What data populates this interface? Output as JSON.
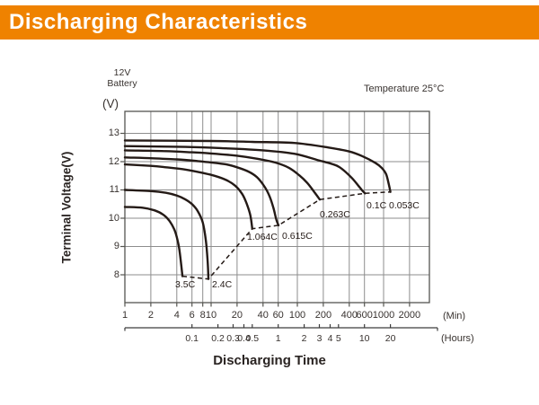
{
  "header": {
    "title": "Discharging Characteristics"
  },
  "annotations": {
    "battery_line1": "12V",
    "battery_line2": "Battery",
    "temperature": "Temperature 25°C",
    "v_unit": "(V)",
    "min_unit": "(Min)",
    "hours_unit": "(Hours)"
  },
  "colors": {
    "banner_orange": "#EF8200",
    "curve": "#241A16",
    "grid": "#8D8D8D",
    "frame": "#555550",
    "text": "#38322F"
  },
  "chart_data": {
    "type": "line",
    "title": "Discharging Characteristics",
    "xlabel": "Discharging Time",
    "ylabel": "Terminal Voltage(V)",
    "x_scale": "log",
    "x_unit": "minutes",
    "x_ticks_minutes": [
      1,
      2,
      4,
      6,
      8,
      10,
      20,
      40,
      60,
      100,
      200,
      400,
      600,
      1000,
      2000
    ],
    "x_ticks_hours": [
      "0.1",
      "0.2",
      "0.3",
      "0.4",
      "0.5",
      "1",
      "2",
      "3",
      "4",
      "5",
      "10",
      "20"
    ],
    "y_ticks": [
      8,
      9,
      10,
      11,
      12,
      13
    ],
    "ylim": [
      7.0,
      13.7
    ],
    "grid": true,
    "legend_position": "inline-labels",
    "temperature": "Temperature 25°C",
    "series": [
      {
        "name": "3.5C",
        "points": [
          [
            1,
            10.4
          ],
          [
            1.6,
            10.37
          ],
          [
            2.2,
            10.28
          ],
          [
            2.8,
            10.12
          ],
          [
            3.3,
            9.9
          ],
          [
            3.8,
            9.55
          ],
          [
            4.2,
            9.05
          ],
          [
            4.45,
            8.5
          ],
          [
            4.6,
            8.1
          ],
          [
            4.65,
            7.95
          ]
        ]
      },
      {
        "name": "2.4C",
        "points": [
          [
            1,
            11.0
          ],
          [
            2,
            10.96
          ],
          [
            3,
            10.9
          ],
          [
            4,
            10.8
          ],
          [
            5,
            10.67
          ],
          [
            6,
            10.5
          ],
          [
            7,
            10.25
          ],
          [
            8,
            9.85
          ],
          [
            8.7,
            9.2
          ],
          [
            9.1,
            8.5
          ],
          [
            9.3,
            7.85
          ]
        ]
      },
      {
        "name": "1.064C",
        "points": [
          [
            1,
            11.9
          ],
          [
            2,
            11.85
          ],
          [
            3,
            11.8
          ],
          [
            5,
            11.72
          ],
          [
            8,
            11.6
          ],
          [
            11,
            11.5
          ],
          [
            15,
            11.35
          ],
          [
            19,
            11.15
          ],
          [
            23,
            10.85
          ],
          [
            26,
            10.5
          ],
          [
            28.5,
            10.1
          ],
          [
            30,
            9.63
          ]
        ]
      },
      {
        "name": "0.615C",
        "points": [
          [
            1,
            12.15
          ],
          [
            2,
            12.12
          ],
          [
            4,
            12.08
          ],
          [
            7,
            12.02
          ],
          [
            10,
            11.97
          ],
          [
            15,
            11.9
          ],
          [
            20,
            11.8
          ],
          [
            27,
            11.65
          ],
          [
            34,
            11.45
          ],
          [
            42,
            11.1
          ],
          [
            48,
            10.75
          ],
          [
            53,
            10.35
          ],
          [
            57,
            9.95
          ],
          [
            60.5,
            9.75
          ]
        ]
      },
      {
        "name": "0.263C",
        "points": [
          [
            1,
            12.4
          ],
          [
            3,
            12.37
          ],
          [
            6,
            12.33
          ],
          [
            10,
            12.29
          ],
          [
            20,
            12.21
          ],
          [
            35,
            12.1
          ],
          [
            55,
            11.97
          ],
          [
            80,
            11.78
          ],
          [
            105,
            11.52
          ],
          [
            130,
            11.25
          ],
          [
            155,
            10.95
          ],
          [
            182,
            10.66
          ]
        ]
      },
      {
        "name": "0.1C",
        "points": [
          [
            1,
            12.55
          ],
          [
            5,
            12.52
          ],
          [
            15,
            12.47
          ],
          [
            40,
            12.4
          ],
          [
            92,
            12.28
          ],
          [
            170,
            12.06
          ],
          [
            250,
            11.92
          ],
          [
            310,
            11.8
          ],
          [
            420,
            11.45
          ],
          [
            510,
            11.15
          ],
          [
            565,
            10.98
          ],
          [
            608,
            10.88
          ]
        ]
      },
      {
        "name": "0.053C",
        "points": [
          [
            1,
            12.75
          ],
          [
            10,
            12.73
          ],
          [
            30,
            12.7
          ],
          [
            92,
            12.66
          ],
          [
            230,
            12.5
          ],
          [
            400,
            12.36
          ],
          [
            560,
            12.2
          ],
          [
            800,
            11.96
          ],
          [
            950,
            11.78
          ],
          [
            1070,
            11.56
          ],
          [
            1150,
            11.2
          ],
          [
            1200,
            10.93
          ]
        ]
      }
    ],
    "cutoff_line": {
      "style": "dashed",
      "points": [
        [
          4.65,
          7.95
        ],
        [
          9.3,
          7.85
        ],
        [
          30,
          9.63
        ],
        [
          60.5,
          9.75
        ],
        [
          182,
          10.66
        ],
        [
          608,
          10.88
        ],
        [
          1200,
          10.93
        ]
      ]
    }
  }
}
